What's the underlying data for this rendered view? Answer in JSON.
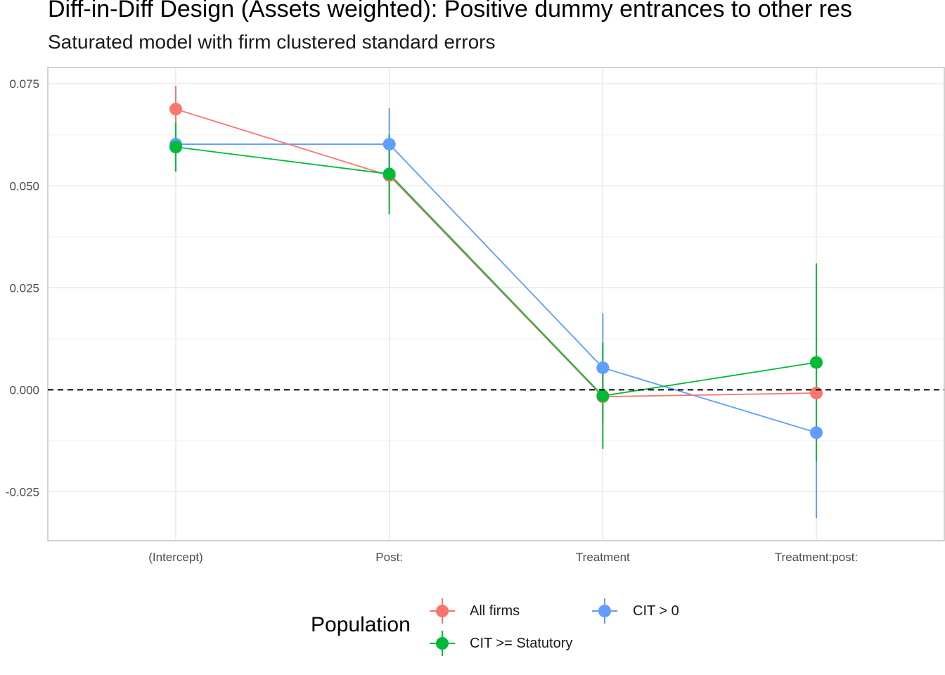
{
  "title": "Diff-in-Diff Design (Assets weighted): Positive dummy entrances to other res",
  "subtitle": "Saturated model with firm clustered standard errors",
  "colors": {
    "All firms": "#F8766D",
    "CIT >= Statutory": "#00BA38",
    "CIT > 0": "#619CFF",
    "grid": "#e5e5e5",
    "reference_line": "#000000"
  },
  "legend": {
    "title": "Population",
    "items": [
      "All firms",
      "CIT >= Statutory",
      "CIT > 0"
    ]
  },
  "chart_data": {
    "type": "line",
    "categories": [
      "(Intercept)",
      "Post:",
      "Treatment",
      "Treatment:post:"
    ],
    "y_ticks": [
      "-0.025",
      "0.000",
      "0.025",
      "0.050",
      "0.075"
    ],
    "ylim": [
      -0.037,
      0.079
    ],
    "reference_line": 0,
    "grid": true,
    "legend_position": "bottom",
    "series": [
      {
        "name": "All firms",
        "values": [
          0.0688,
          0.0525,
          -0.0017,
          -0.0008
        ],
        "lower": [
          0.063,
          0.045,
          -0.008,
          -0.003
        ],
        "upper": [
          0.0745,
          0.06,
          0.005,
          0.0015
        ]
      },
      {
        "name": "CIT >= Statutory",
        "values": [
          0.0595,
          0.0529,
          -0.0015,
          0.0067
        ],
        "lower": [
          0.0535,
          0.043,
          -0.0145,
          -0.0175
        ],
        "upper": [
          0.0655,
          0.0625,
          0.0115,
          0.031
        ]
      },
      {
        "name": "CIT > 0",
        "values": [
          0.0602,
          0.0602,
          0.0054,
          -0.0105
        ],
        "lower": [
          0.054,
          0.0515,
          -0.008,
          -0.0315
        ],
        "upper": [
          0.0665,
          0.069,
          0.0188,
          0.01
        ]
      }
    ]
  }
}
